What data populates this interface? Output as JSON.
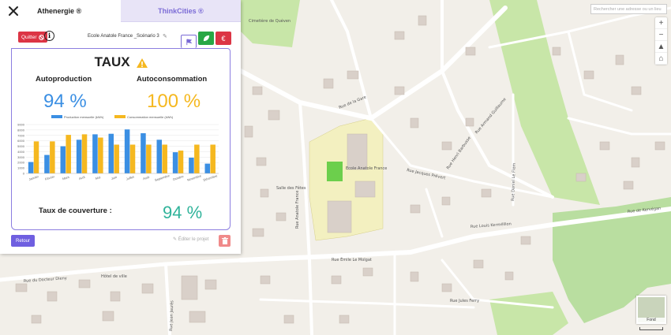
{
  "tabs": {
    "active": "Athenergie ®",
    "other": "ThinkCities ®"
  },
  "toolbar": {
    "quit_label": "Quitter",
    "scenario": "Ecole Anatole France _Scénario 3"
  },
  "card": {
    "title": "TAUX",
    "autoprod_label": "Autoproduction",
    "autocons_label": "Autoconsommation",
    "autoprod_value": "94 %",
    "autocons_value": "100 %",
    "couverture_label": "Taux de couverture :",
    "couverture_value": "94 %"
  },
  "footer": {
    "retour": "Retour",
    "edit": "Éditer le projet"
  },
  "map": {
    "search_placeholder": "Rechercher une adresse ou un lieu",
    "layer_label": "Fond",
    "streets": [
      "Rue de la Gare",
      "Rue Émile Le Molgat",
      "Rue Louis Kerméllion",
      "Rue Jules Ferry",
      "Rue du Docteur Dieny",
      "Rue Jacques Prévert",
      "Rue de Kervégan",
      "Rue Anatole France",
      "Rue Daniel Le Flem",
      "Rue Henri Barbusse",
      "Rue Armand Guillaume",
      "Rue Jean Jaurès"
    ],
    "places": [
      "Cimetière de Quéven",
      "Ecole Anatole France",
      "Salle des Fêtes",
      "Hôtel de ville"
    ],
    "colors": {
      "park": "#c8e6a8",
      "school": "#f3f0c0",
      "building": "#d8d0c8"
    }
  },
  "chart_data": {
    "type": "bar",
    "categories": [
      "Janvier",
      "Février",
      "Mars",
      "Avril",
      "Mai",
      "Juin",
      "Juillet",
      "Août",
      "Septembre",
      "Octobre",
      "Novembre",
      "Décembre"
    ],
    "series": [
      {
        "name": "Production mensuelle (kWh)",
        "color": "#3b8fe3",
        "values": [
          2100,
          3400,
          5000,
          6200,
          7200,
          7300,
          8100,
          7400,
          6200,
          3900,
          2900,
          1800
        ]
      },
      {
        "name": "Consommation mensuelle (kWh)",
        "color": "#f5b820",
        "values": [
          5900,
          5900,
          7100,
          7200,
          6600,
          5300,
          5300,
          5300,
          5300,
          4200,
          5300,
          5300
        ]
      }
    ],
    "ylim": [
      0,
      9000
    ],
    "yticks": [
      0,
      1000,
      2000,
      3000,
      4000,
      5000,
      6000,
      7000,
      8000,
      9000
    ],
    "legend": "top",
    "grid": true
  }
}
